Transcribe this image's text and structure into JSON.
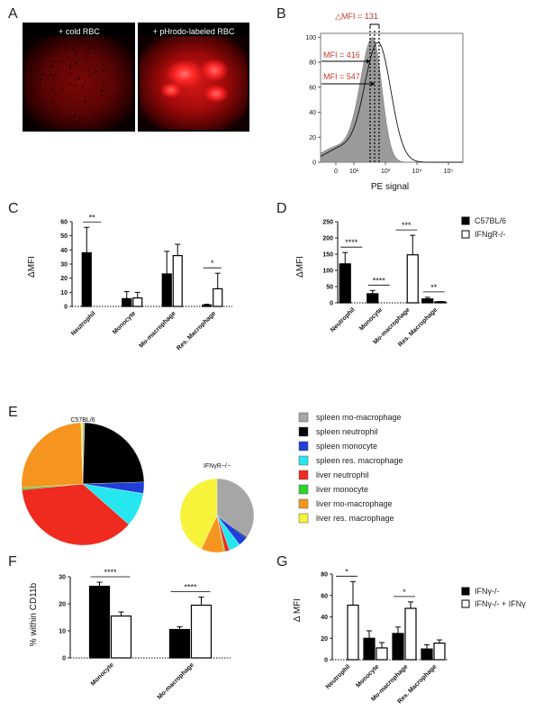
{
  "panels": {
    "A": {
      "letter": "A",
      "images": [
        {
          "caption": "+ cold RBC"
        },
        {
          "caption": "+ pHrodo-labeled RBC"
        }
      ]
    },
    "B": {
      "letter": "B",
      "chart_data": {
        "type": "histogram",
        "delta_label": "△MFI = 131",
        "mfi_labels": [
          "MFI = 416",
          "MFI = 547"
        ],
        "xlabel": "PE signal",
        "x_ticks": [
          "0",
          "10²",
          "10³",
          "10⁴",
          "10⁵"
        ],
        "y_ticks": [
          0,
          20,
          40,
          60,
          80,
          100
        ],
        "ylim": [
          0,
          100
        ]
      }
    },
    "C": {
      "letter": "C",
      "chart_data": {
        "type": "bar",
        "ylabel": "ΔMFI",
        "ylim": [
          0,
          60
        ],
        "y_ticks": [
          0,
          10,
          20,
          30,
          40,
          50,
          60
        ],
        "categories": [
          "Neutrophil",
          "Monocyte",
          "Mo-macrophage",
          "Res. Macrophage"
        ],
        "series": [
          {
            "style": "filled",
            "values": [
              38,
              5.5,
              23,
              1
            ],
            "errors": [
              18,
              5,
              16,
              0.5
            ]
          },
          {
            "style": "open",
            "values": [
              0,
              6,
              36,
              12.5
            ],
            "errors": [
              0,
              4,
              8,
              11
            ]
          }
        ],
        "significance": [
          "**",
          "",
          "",
          "*"
        ]
      }
    },
    "D": {
      "letter": "D",
      "chart_data": {
        "type": "bar",
        "ylabel": "ΔMFI",
        "ylim": [
          0,
          250
        ],
        "y_ticks": [
          0,
          50,
          100,
          150,
          200,
          250
        ],
        "categories": [
          "Neutrophil",
          "Monocyte",
          "Mo-macrophage",
          "Res. Macrophage"
        ],
        "series": [
          {
            "name": "C57BL/6",
            "style": "filled",
            "values": [
              120,
              28,
              0,
              12
            ],
            "errors": [
              35,
              10,
              0,
              5
            ]
          },
          {
            "name": "IFNgR-/-",
            "style": "open",
            "values": [
              0,
              0,
              148,
              3
            ],
            "errors": [
              0,
              0,
              60,
              1
            ]
          }
        ],
        "significance": [
          "****",
          "****",
          "***",
          "**"
        ]
      }
    },
    "E": {
      "letter": "E",
      "chart_data": {
        "type": "pie",
        "legend": [
          {
            "label": "spleen mo-macrophage",
            "color": "#a6a6a6"
          },
          {
            "label": "spleen neutrophil",
            "color": "#000000"
          },
          {
            "label": "spleen monocyte",
            "color": "#1f3fd8"
          },
          {
            "label": "spleen res. macrophage",
            "color": "#26e6f0"
          },
          {
            "label": "liver neutrophil",
            "color": "#ef2a1f"
          },
          {
            "label": "liver monocyte",
            "color": "#2bd52b"
          },
          {
            "label": "liver mo-macrophage",
            "color": "#f5951f"
          },
          {
            "label": "liver res. macrophage",
            "color": "#f7f33a"
          }
        ],
        "pies": [
          {
            "title": "C57BL/6",
            "values": [
              0.5,
              24,
              3,
              9,
              37,
              0.5,
              25.5,
              0.5
            ]
          },
          {
            "title": "IFNγR−/−",
            "values": [
              35,
              0.5,
              4,
              5,
              2,
              0.5,
              10,
              43
            ]
          }
        ]
      }
    },
    "F": {
      "letter": "F",
      "chart_data": {
        "type": "bar",
        "ylabel": "% within CD11b",
        "ylim": [
          0,
          30
        ],
        "y_ticks": [
          0,
          10,
          20,
          30
        ],
        "categories": [
          "Monocyte",
          "Mo-macrophage"
        ],
        "series": [
          {
            "style": "filled",
            "values": [
              26.5,
              10.5
            ],
            "errors": [
              1.5,
              1
            ]
          },
          {
            "style": "open",
            "values": [
              15.5,
              19.5
            ],
            "errors": [
              1.5,
              3
            ]
          }
        ],
        "significance": [
          "****",
          "****"
        ]
      }
    },
    "G": {
      "letter": "G",
      "chart_data": {
        "type": "bar",
        "ylabel": "Δ MFI",
        "ylim": [
          0,
          80
        ],
        "y_ticks": [
          0,
          20,
          40,
          60,
          80
        ],
        "categories": [
          "Neutrophil",
          "Monocyte",
          "Mo-macrophage",
          "Res. Macrophage"
        ],
        "series": [
          {
            "name": "IFNγ-/-",
            "style": "filled",
            "values": [
              0,
              20,
              24.5,
              10
            ],
            "errors": [
              0,
              7,
              6,
              4
            ]
          },
          {
            "name": "IFNγ-/- + IFNγ",
            "style": "open",
            "values": [
              51,
              11,
              48,
              15.5
            ],
            "errors": [
              22,
              5,
              6,
              3
            ]
          }
        ],
        "significance": [
          "*",
          "",
          "*",
          ""
        ]
      }
    }
  }
}
